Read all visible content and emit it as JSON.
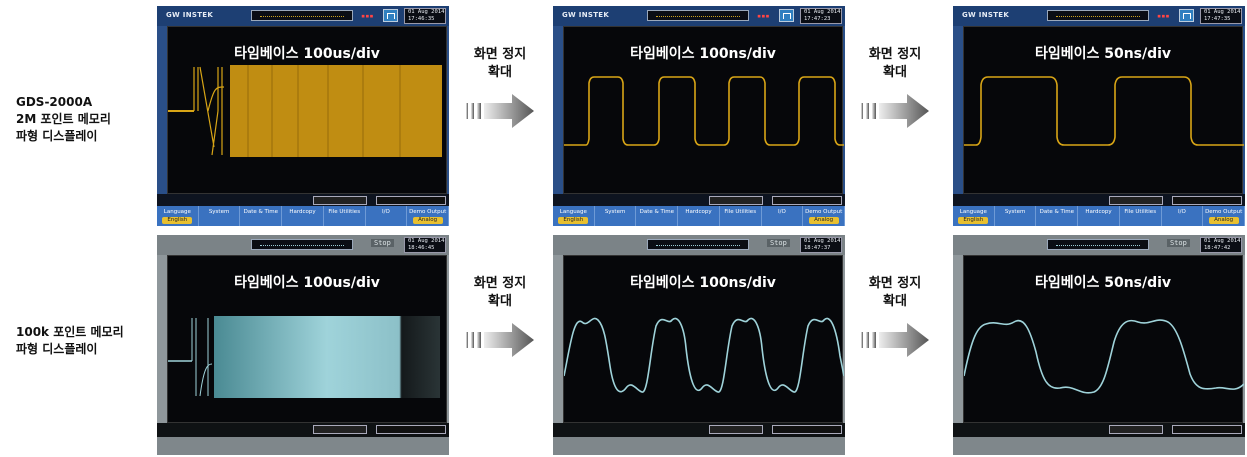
{
  "rows": [
    {
      "label_lines": [
        "GDS-2000A",
        "2M 포인트 메모리",
        "파형 디스플레이"
      ],
      "panels": [
        {
          "title": "타임베이스 100us/div",
          "brand": "GW INSTEK",
          "clock": [
            "01 Aug 2014",
            "17:46:35"
          ],
          "timebase_readout": "100us",
          "softkeys": [
            {
              "label": "Language",
              "sub": "English"
            },
            {
              "label": "System",
              "sub": ""
            },
            {
              "label": "Date & Time",
              "sub": ""
            },
            {
              "label": "Hardcopy",
              "sub": ""
            },
            {
              "label": "File Utilities",
              "sub": ""
            },
            {
              "label": "I/O",
              "sub": ""
            },
            {
              "label": "Demo Output",
              "sub": "Analog"
            }
          ]
        },
        {
          "title": "타임베이스 100ns/div",
          "brand": "GW INSTEK",
          "clock": [
            "01 Aug 2014",
            "17:47:23"
          ],
          "timebase_readout": "100ns",
          "softkeys": [
            {
              "label": "Language",
              "sub": "English"
            },
            {
              "label": "System",
              "sub": ""
            },
            {
              "label": "Date & Time",
              "sub": ""
            },
            {
              "label": "Hardcopy",
              "sub": ""
            },
            {
              "label": "File Utilities",
              "sub": ""
            },
            {
              "label": "I/O",
              "sub": ""
            },
            {
              "label": "Demo Output",
              "sub": "Analog"
            }
          ]
        },
        {
          "title": "타임베이스 50ns/div",
          "brand": "GW INSTEK",
          "clock": [
            "01 Aug 2014",
            "17:47:35"
          ],
          "timebase_readout": "50ns",
          "softkeys": [
            {
              "label": "Language",
              "sub": "English"
            },
            {
              "label": "System",
              "sub": ""
            },
            {
              "label": "Date & Time",
              "sub": ""
            },
            {
              "label": "Hardcopy",
              "sub": ""
            },
            {
              "label": "File Utilities",
              "sub": ""
            },
            {
              "label": "I/O",
              "sub": ""
            },
            {
              "label": "Demo Output",
              "sub": "Analog"
            }
          ]
        }
      ]
    },
    {
      "label_lines": [
        "100k 포인트 메모리",
        "파형 디스플레이"
      ],
      "panels": [
        {
          "title": "타임베이스 100us/div",
          "state": "Stop",
          "clock": [
            "01 Aug 2014",
            "18:46:45"
          ],
          "timebase_readout": "100us"
        },
        {
          "title": "타임베이스 100ns/div",
          "state": "Stop",
          "clock": [
            "01 Aug 2014",
            "18:47:37"
          ],
          "timebase_readout": "100ns"
        },
        {
          "title": "타임베이스 50ns/div",
          "state": "Stop",
          "clock": [
            "01 Aug 2014",
            "18:47:42"
          ],
          "timebase_readout": "50ns"
        }
      ]
    }
  ],
  "steps": [
    {
      "lines": [
        "화면 정지",
        "확대"
      ]
    },
    {
      "lines": [
        "화면 정지",
        "확대"
      ]
    },
    {
      "lines": [
        "화면 정지",
        "확대"
      ]
    },
    {
      "lines": [
        "화면 정지",
        "확대"
      ]
    }
  ],
  "colors": {
    "gw_trace": "#d8a516",
    "gw_fill": "#c08d12",
    "ac_trace": "#9fd3da",
    "ac_fill_light": "#9fd3da",
    "arrow_dark": "#555555",
    "arrow_light": "#dddddd"
  },
  "icons": {
    "step_arrow": "arrow-right-gradient-icon",
    "trigger": "trigger-icon"
  }
}
